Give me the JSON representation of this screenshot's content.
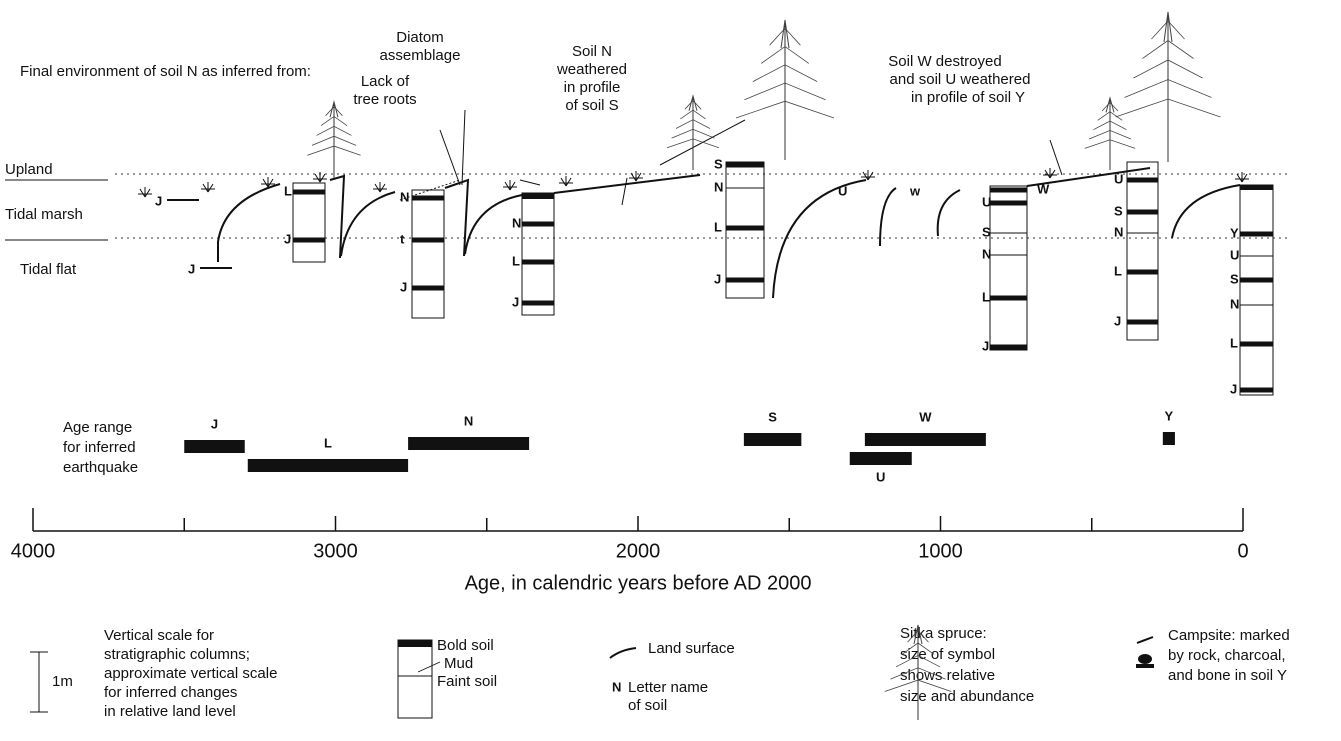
{
  "heading": "Final environment of soil N as inferred from:",
  "environments": [
    "Upland",
    "Tidal marsh",
    "Tidal flat"
  ],
  "annotations": {
    "diatom": [
      "Diatom",
      "assemblage"
    ],
    "roots": [
      "Lack of",
      "tree roots"
    ],
    "soil_n": [
      "Soil N",
      "weathered",
      "in profile",
      "of soil S"
    ],
    "soil_w": [
      "Soil W destroyed",
      "and soil U weathered",
      "in profile of soil Y"
    ]
  },
  "box_labels": [
    "J",
    "J"
  ],
  "columns": [
    [
      "L",
      "J"
    ],
    [
      "N",
      "t",
      "J"
    ],
    [
      "N",
      "L",
      "J"
    ],
    [
      "S",
      "N",
      "L",
      "J"
    ],
    [
      "W",
      "U",
      "S",
      "N",
      "L",
      "J"
    ],
    [
      "U",
      "S",
      "N",
      "L",
      "J"
    ],
    [
      "Y",
      "U",
      "S",
      "N",
      "L",
      "J"
    ]
  ],
  "curve_labels": [
    "U",
    "w"
  ],
  "age_range_label": [
    "Age range",
    "for inferred",
    "earthquake"
  ],
  "quakes": [
    {
      "name": "J",
      "range": [
        3500,
        3300
      ]
    },
    {
      "name": "L",
      "range": [
        3290,
        2760
      ]
    },
    {
      "name": "N",
      "range": [
        2760,
        2360
      ]
    },
    {
      "name": "S",
      "range": [
        1650,
        1460
      ]
    },
    {
      "name": "W",
      "range": [
        1250,
        850
      ]
    },
    {
      "name": "U",
      "range": [
        1300,
        1095
      ]
    },
    {
      "name": "Y",
      "range": [
        265,
        225
      ]
    }
  ],
  "axis": {
    "title": "Age, in calendric years before AD 2000",
    "xlim": [
      4000,
      0
    ],
    "ticks": [
      4000,
      3000,
      2000,
      1000,
      0
    ],
    "minor_ticks": [
      3500,
      2500,
      1500,
      500
    ]
  },
  "legend": {
    "scale": {
      "unit": "1m",
      "text": [
        "Vertical scale for",
        "stratigraphic columns;",
        "approximate vertical scale",
        "for inferred changes",
        "in relative land level"
      ]
    },
    "column": [
      "Bold soil",
      "Mud",
      "Faint soil"
    ],
    "surface": "Land surface",
    "letter": {
      "symbol": "N",
      "text": [
        "Letter name",
        "of soil"
      ]
    },
    "spruce": [
      "Sitka spruce:",
      "size of symbol",
      "shows relative",
      "size and abundance"
    ],
    "campsite": [
      "Campsite: marked",
      "by rock, charcoal,",
      "and bone in soil Y"
    ]
  }
}
